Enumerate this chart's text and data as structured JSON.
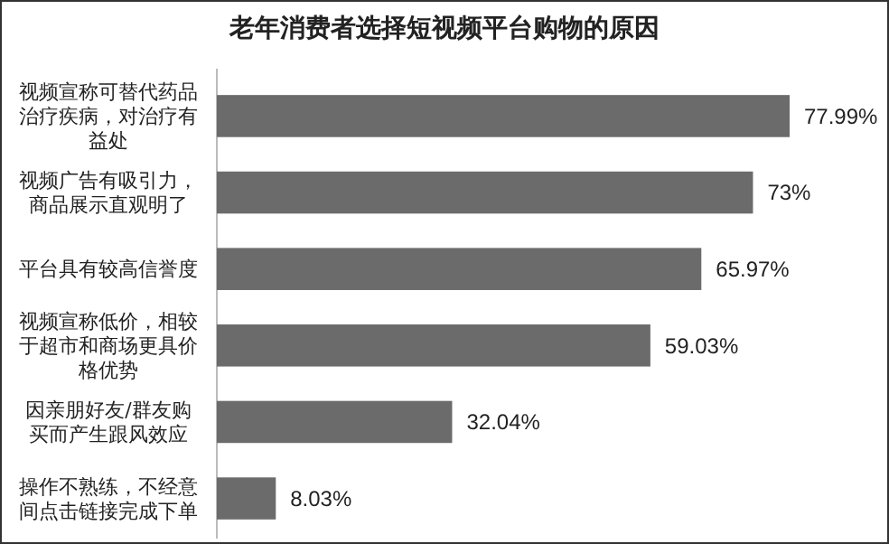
{
  "chart_data": {
    "type": "bar",
    "orientation": "horizontal",
    "title": "老年消费者选择短视频平台购物的原因",
    "categories": [
      "视频宣称可替代药品治疗疾病，对治疗有益处",
      "视频广告有吸引力，商品展示直观明了",
      "平台具有较高信誉度",
      "视频宣称低价，相较于超市和商场更具价格优势",
      "因亲朋好友/群友购买而产生跟风效应",
      "操作不熟练，不经意间点击链接完成下单"
    ],
    "values": [
      77.99,
      73,
      65.97,
      59.03,
      32.04,
      8.03
    ],
    "value_labels": [
      "77.99%",
      "73%",
      "65.97%",
      "59.03%",
      "32.04%",
      "8.03%"
    ],
    "color": "#6b6b6b"
  }
}
